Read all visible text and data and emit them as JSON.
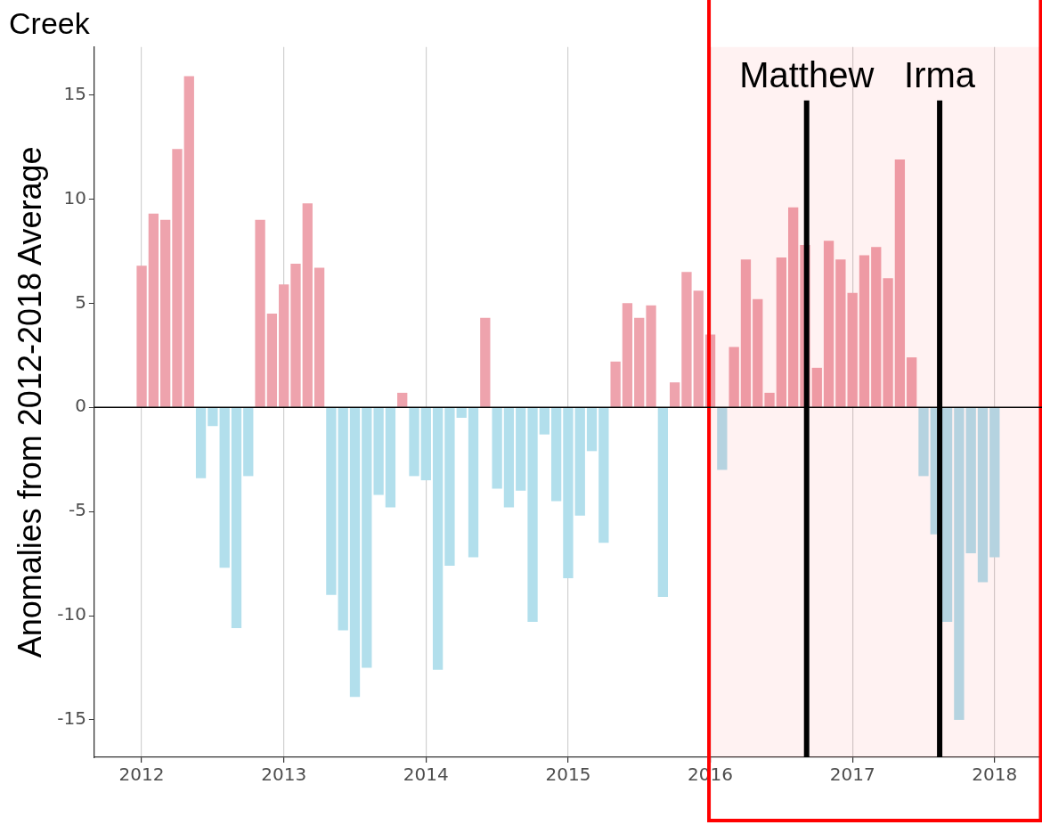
{
  "chart_data": {
    "type": "bar",
    "title": "Creek",
    "ylabel": "Anomalies from 2012-2018 Average",
    "x": [
      "2012-01",
      "2012-02",
      "2012-03",
      "2012-04",
      "2012-05",
      "2012-06",
      "2012-07",
      "2012-08",
      "2012-09",
      "2012-10",
      "2012-11",
      "2012-12",
      "2013-01",
      "2013-02",
      "2013-03",
      "2013-04",
      "2013-05",
      "2013-06",
      "2013-07",
      "2013-08",
      "2013-09",
      "2013-10",
      "2013-11",
      "2013-12",
      "2014-01",
      "2014-02",
      "2014-03",
      "2014-04",
      "2014-05",
      "2014-06",
      "2014-07",
      "2014-08",
      "2014-09",
      "2014-10",
      "2014-11",
      "2014-12",
      "2015-01",
      "2015-02",
      "2015-03",
      "2015-04",
      "2015-05",
      "2015-06",
      "2015-07",
      "2015-08",
      "2015-09",
      "2015-10",
      "2015-11",
      "2015-12",
      "2016-01",
      "2016-02",
      "2016-03",
      "2016-04",
      "2016-05",
      "2016-06",
      "2016-07",
      "2016-08",
      "2016-09",
      "2016-10",
      "2016-11",
      "2016-12",
      "2017-01",
      "2017-02",
      "2017-03",
      "2017-04",
      "2017-05",
      "2017-06",
      "2017-07",
      "2017-08",
      "2017-09",
      "2017-10",
      "2017-11",
      "2017-12",
      "2018-01"
    ],
    "values": [
      6.8,
      9.3,
      9.0,
      12.4,
      15.9,
      -3.4,
      -0.9,
      -7.7,
      -10.6,
      -3.3,
      9.0,
      4.5,
      5.9,
      6.9,
      9.8,
      6.7,
      -9.0,
      -10.7,
      -13.9,
      -12.5,
      -4.2,
      -4.8,
      0.7,
      -3.3,
      -3.5,
      -12.6,
      -7.6,
      -0.5,
      -7.2,
      4.3,
      -3.9,
      -4.8,
      -4.0,
      -10.3,
      -1.3,
      -4.5,
      -8.2,
      -5.2,
      -2.1,
      -6.5,
      2.2,
      5.0,
      4.3,
      4.9,
      -9.1,
      1.2,
      6.5,
      5.6,
      3.5,
      -3.0,
      2.9,
      7.1,
      5.2,
      0.7,
      7.2,
      9.6,
      7.8,
      1.9,
      8.0,
      7.1,
      5.5,
      7.3,
      7.7,
      6.2,
      11.9,
      2.4,
      -3.3,
      -6.1,
      -10.3,
      -15.0,
      -7.0,
      -8.4,
      -7.2
    ],
    "colors": [
      "#eea3ad",
      "#eea3ad",
      "#eea3ad",
      "#eea3ad",
      "#eea3ad",
      "#b2dfec",
      "#b2dfec",
      "#b2dfec",
      "#b2dfec",
      "#b2dfec",
      "#eea3ad",
      "#eea3ad",
      "#eea3ad",
      "#eea3ad",
      "#eea3ad",
      "#eea3ad",
      "#b2dfec",
      "#b2dfec",
      "#b2dfec",
      "#b2dfec",
      "#b2dfec",
      "#b2dfec",
      "#eea3ad",
      "#b2dfec",
      "#b2dfec",
      "#b2dfec",
      "#b2dfec",
      "#b2dfec",
      "#b2dfec",
      "#eea3ad",
      "#b2dfec",
      "#b2dfec",
      "#b2dfec",
      "#b2dfec",
      "#b2dfec",
      "#b2dfec",
      "#b2dfec",
      "#b2dfec",
      "#b2dfec",
      "#b2dfec",
      "#eea3ad",
      "#eea3ad",
      "#eea3ad",
      "#eea3ad",
      "#b2dfec",
      "#eea3ad",
      "#eea3ad",
      "#eea3ad",
      "#eea3ad",
      "#b2dfec",
      "#eea3ad",
      "#eea3ad",
      "#eea3ad",
      "#eea3ad",
      "#eea3ad",
      "#eea3ad",
      "#eea3ad",
      "#eea3ad",
      "#eea3ad",
      "#eea3ad",
      "#eea3ad",
      "#eea3ad",
      "#eea3ad",
      "#eea3ad",
      "#eea3ad",
      "#eea3ad",
      "#b2dfec",
      "#b2dfec",
      "#b2dfec",
      "#b2dfec",
      "#b2dfec",
      "#b2dfec",
      "#b2dfec"
    ],
    "xlim": [
      "2011-09",
      "2018-05"
    ],
    "xticks": [
      "2012",
      "2013",
      "2014",
      "2015",
      "2016",
      "2017",
      "2018"
    ],
    "ylim": [
      -16.8,
      17.3
    ],
    "yticks": [
      -15,
      -10,
      -5,
      0,
      5,
      10,
      15
    ],
    "grid": "x",
    "bands": [
      {
        "axis": "x",
        "from": "2015-12-28",
        "to": "2018-04-28",
        "color": "#ff0000"
      }
    ],
    "ref_lines": [
      {
        "axis": "y",
        "value": 0,
        "color": "#000000"
      },
      {
        "axis": "x",
        "value": "2016-09-05",
        "label": "Matthew",
        "color": "#000000"
      },
      {
        "axis": "x",
        "value": "2017-08-12",
        "label": "Irma",
        "color": "#000000"
      }
    ]
  }
}
